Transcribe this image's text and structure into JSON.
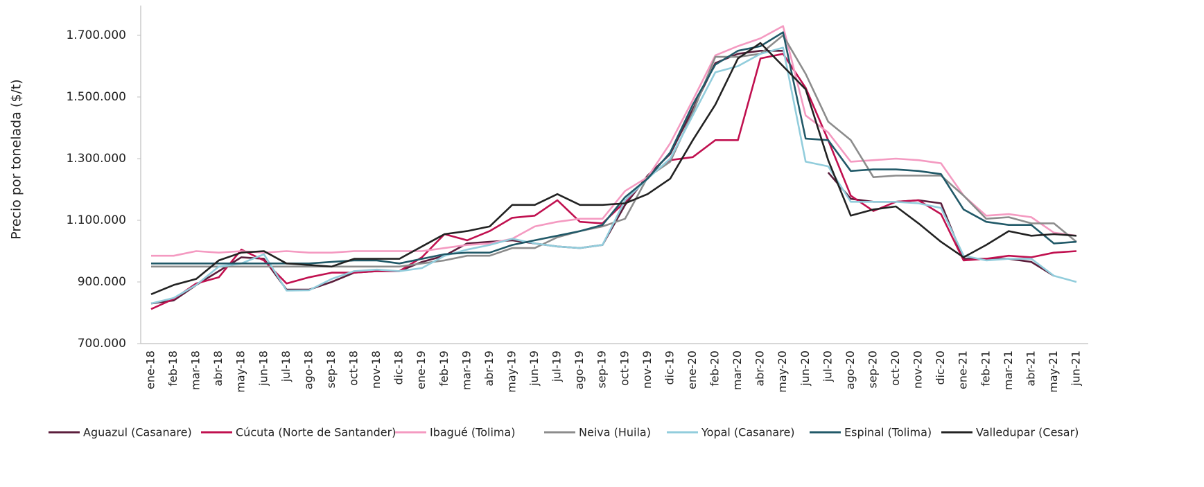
{
  "chart_data": {
    "type": "line",
    "y_label": "Precio por tonelada ($/t)",
    "categories": [
      "ene-18",
      "feb-18",
      "mar-18",
      "abr-18",
      "may-18",
      "jun-18",
      "jul-18",
      "ago-18",
      "sep-18",
      "oct-18",
      "nov-18",
      "dic-18",
      "ene-19",
      "feb-19",
      "mar-19",
      "abr-19",
      "may-19",
      "jun-19",
      "jul-19",
      "ago-19",
      "sep-19",
      "oct-19",
      "nov-19",
      "dic-19",
      "ene-20",
      "feb-20",
      "mar-20",
      "abr-20",
      "may-20",
      "jun-20",
      "jul-20",
      "ago-20",
      "sep-20",
      "oct-20",
      "nov-20",
      "dic-20",
      "ene-21",
      "feb-21",
      "mar-21",
      "abr-21",
      "may-21",
      "jun-21"
    ],
    "ylim": [
      700000,
      1800000
    ],
    "yticks": [
      {
        "value": 700000,
        "label": "700.000"
      },
      {
        "value": 900000,
        "label": "900.000"
      },
      {
        "value": 1100000,
        "label": "1.100.000"
      },
      {
        "value": 1300000,
        "label": "1.300.000"
      },
      {
        "value": 1500000,
        "label": "1.500.000"
      },
      {
        "value": 1700000,
        "label": "1.700.000"
      }
    ],
    "grid": false,
    "legend": "bottom",
    "series": [
      {
        "name": "Aguazul (Casanare)",
        "color": "#5b1e3c",
        "values": [
          830000,
          840000,
          890000,
          935000,
          980000,
          975000,
          875000,
          875000,
          900000,
          930000,
          935000,
          935000,
          965000,
          985000,
          1025000,
          1030000,
          1035000,
          1025000,
          1015000,
          1010000,
          1020000,
          1150000,
          1245000,
          1315000,
          1460000,
          1610000,
          1640000,
          1650000,
          1650000,
          null,
          1255000,
          1170000,
          1160000,
          1160000,
          1165000,
          1155000,
          975000,
          975000,
          975000,
          965000,
          920000,
          null
        ]
      },
      {
        "name": "Cúcuta (Norte de Santander)",
        "color": "#c0104f",
        "values": [
          812000,
          845000,
          895000,
          915000,
          1005000,
          970000,
          895000,
          915000,
          930000,
          930000,
          935000,
          935000,
          980000,
          1055000,
          1035000,
          1065000,
          1108000,
          1115000,
          1165000,
          1095000,
          1090000,
          1160000,
          1240000,
          1295000,
          1305000,
          1360000,
          1360000,
          1625000,
          1640000,
          1530000,
          1360000,
          1180000,
          1130000,
          1160000,
          1165000,
          1120000,
          970000,
          975000,
          985000,
          980000,
          995000,
          1000000
        ]
      },
      {
        "name": "Ibagué (Tolima)",
        "color": "#f49ac1",
        "values": [
          985000,
          985000,
          1000000,
          995000,
          1000000,
          995000,
          1000000,
          995000,
          995000,
          1000000,
          1000000,
          1000000,
          1000000,
          1010000,
          1020000,
          1025000,
          1040000,
          1080000,
          1095000,
          1105000,
          1105000,
          1195000,
          1240000,
          1350000,
          1490000,
          1635000,
          1665000,
          1690000,
          1730000,
          1440000,
          1385000,
          1290000,
          1295000,
          1300000,
          1295000,
          1285000,
          1180000,
          1115000,
          1120000,
          1110000,
          1060000,
          1050000
        ]
      },
      {
        "name": "Neiva (Huila)",
        "color": "#8c8c8c",
        "values": [
          950000,
          950000,
          950000,
          950000,
          950000,
          950000,
          950000,
          950000,
          950000,
          950000,
          950000,
          950000,
          960000,
          970000,
          985000,
          985000,
          1010000,
          1010000,
          1045000,
          1065000,
          1080000,
          1105000,
          1240000,
          1290000,
          1450000,
          1630000,
          1630000,
          1640000,
          1700000,
          1575000,
          1420000,
          1360000,
          1240000,
          1245000,
          1245000,
          1245000,
          1180000,
          1105000,
          1110000,
          1090000,
          1090000,
          1030000
        ]
      },
      {
        "name": "Yopal (Casanare)",
        "color": "#92cddc",
        "values": [
          830000,
          848000,
          890000,
          950000,
          960000,
          990000,
          872000,
          873000,
          910000,
          935000,
          940000,
          935000,
          945000,
          985000,
          1005000,
          1020000,
          1040000,
          1025000,
          1015000,
          1010000,
          1020000,
          1165000,
          1235000,
          1300000,
          1440000,
          1580000,
          1600000,
          1640000,
          1660000,
          1290000,
          1275000,
          1160000,
          1160000,
          1160000,
          1155000,
          1140000,
          985000,
          970000,
          975000,
          975000,
          920000,
          900000
        ]
      },
      {
        "name": "Espinal (Tolima)",
        "color": "#215968",
        "values": [
          960000,
          960000,
          960000,
          960000,
          960000,
          960000,
          960000,
          960000,
          965000,
          970000,
          970000,
          960000,
          975000,
          990000,
          995000,
          995000,
          1020000,
          1035000,
          1050000,
          1065000,
          1085000,
          1175000,
          1235000,
          1320000,
          1475000,
          1605000,
          1650000,
          1665000,
          1710000,
          1365000,
          1360000,
          1260000,
          1265000,
          1265000,
          1260000,
          1250000,
          1135000,
          1095000,
          1085000,
          1085000,
          1025000,
          1030000
        ]
      },
      {
        "name": "Valledupar (Cesar)",
        "color": "#222222",
        "values": [
          860000,
          890000,
          910000,
          970000,
          995000,
          1000000,
          960000,
          955000,
          950000,
          975000,
          975000,
          975000,
          1015000,
          1055000,
          1065000,
          1080000,
          1150000,
          1150000,
          1185000,
          1150000,
          1150000,
          1155000,
          1185000,
          1235000,
          1360000,
          1475000,
          1625000,
          1675000,
          1600000,
          1525000,
          1295000,
          1115000,
          1135000,
          1145000,
          1090000,
          1030000,
          980000,
          1020000,
          1065000,
          1050000,
          1055000,
          1050000
        ]
      }
    ]
  }
}
